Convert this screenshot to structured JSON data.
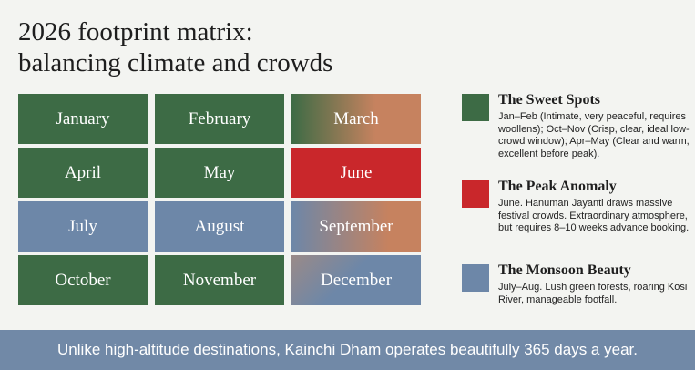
{
  "header": {
    "title_lines": [
      "2026 footprint matrix:",
      "balancing climate and crowds"
    ]
  },
  "matrix": {
    "rows": [
      [
        "January",
        "February",
        "March"
      ],
      [
        "April",
        "May",
        "June"
      ],
      [
        "July",
        "August",
        "September"
      ],
      [
        "October",
        "November",
        "December"
      ]
    ]
  },
  "legend": [
    {
      "title": "The Sweet Spots",
      "text": "Jan–Feb (Intimate, very peaceful, requires woollens); Oct–Nov (Crisp, clear, ideal low-crowd window); Apr–May (Clear and warm, excellent before peak)."
    },
    {
      "title": "The Peak Anomaly",
      "text": "June. Hanuman Jayanti draws massive festival crowds. Extraordinary atmosphere, but requires 8–10 weeks advance booking."
    },
    {
      "title": "The Monsoon Beauty",
      "text": "July–Aug. Lush green forests, roaring Kosi River, manageable footfall."
    }
  ],
  "footer": {
    "text": "Unlike high-altitude destinations, Kainchi Dham operates beautifully 365 days a year."
  }
}
